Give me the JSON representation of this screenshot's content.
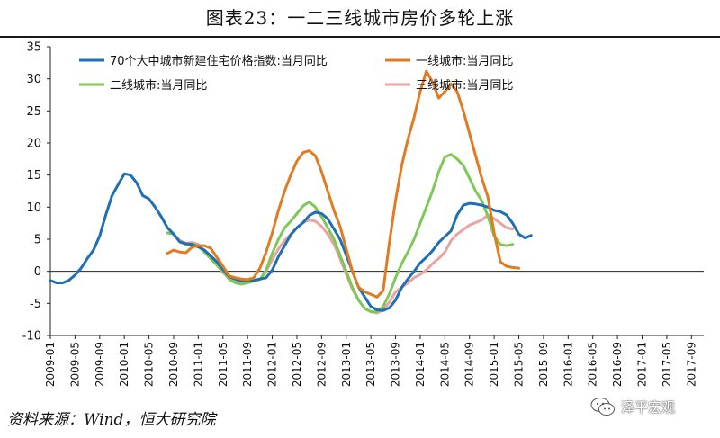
{
  "title": "图表23：一二三线城市房价多轮上涨",
  "source": "资料来源：Wind，恒大研究院",
  "watermark": "泽平宏观",
  "chart_data": {
    "type": "line",
    "ylim": [
      -10,
      35
    ],
    "yticks": [
      -10,
      -5,
      0,
      5,
      10,
      15,
      20,
      25,
      30,
      35
    ],
    "xlim": [
      0,
      106
    ],
    "xticks": [
      {
        "label": "2009-01",
        "pos": 0
      },
      {
        "label": "2009-05",
        "pos": 4
      },
      {
        "label": "2009-09",
        "pos": 8
      },
      {
        "label": "2010-01",
        "pos": 12
      },
      {
        "label": "2010-05",
        "pos": 16
      },
      {
        "label": "2010-09",
        "pos": 20
      },
      {
        "label": "2011-01",
        "pos": 24
      },
      {
        "label": "2011-05",
        "pos": 28
      },
      {
        "label": "2011-09",
        "pos": 32
      },
      {
        "label": "2012-01",
        "pos": 36
      },
      {
        "label": "2012-05",
        "pos": 40
      },
      {
        "label": "2012-09",
        "pos": 44
      },
      {
        "label": "2013-01",
        "pos": 48
      },
      {
        "label": "2013-05",
        "pos": 52
      },
      {
        "label": "2013-09",
        "pos": 56
      },
      {
        "label": "2014-01",
        "pos": 60
      },
      {
        "label": "2014-05",
        "pos": 64
      },
      {
        "label": "2014-09",
        "pos": 68
      },
      {
        "label": "2015-01",
        "pos": 72
      },
      {
        "label": "2015-05",
        "pos": 76
      },
      {
        "label": "2015-09",
        "pos": 80
      },
      {
        "label": "2016-01",
        "pos": 84
      },
      {
        "label": "2016-05",
        "pos": 88
      },
      {
        "label": "2016-09",
        "pos": 92
      },
      {
        "label": "2017-01",
        "pos": 96
      },
      {
        "label": "2017-05",
        "pos": 100
      },
      {
        "label": "2017-09",
        "pos": 104
      }
    ],
    "legend_position": "top",
    "grid": false,
    "series": [
      {
        "name": "70个大中城市新建住宅价格指数:当月同比",
        "color": "#1f6fb5",
        "points": [
          [
            0,
            -1.4
          ],
          [
            1,
            -1.8
          ],
          [
            2,
            -1.8
          ],
          [
            3,
            -1.4
          ],
          [
            4,
            -0.6
          ],
          [
            5,
            0.5
          ],
          [
            6,
            2.0
          ],
          [
            7,
            3.3
          ],
          [
            8,
            5.5
          ],
          [
            9,
            8.8
          ],
          [
            10,
            11.8
          ],
          [
            11,
            13.5
          ],
          [
            12,
            15.2
          ],
          [
            13,
            15.0
          ],
          [
            14,
            13.8
          ],
          [
            15,
            11.8
          ],
          [
            16,
            11.3
          ],
          [
            17,
            10.0
          ],
          [
            18,
            8.5
          ],
          [
            19,
            6.8
          ],
          [
            20,
            5.8
          ],
          [
            21,
            4.6
          ],
          [
            22,
            4.3
          ],
          [
            23,
            4.2
          ],
          [
            24,
            3.8
          ],
          [
            25,
            3.3
          ],
          [
            26,
            2.4
          ],
          [
            27,
            1.5
          ],
          [
            28,
            0.3
          ],
          [
            29,
            -0.8
          ],
          [
            30,
            -1.2
          ],
          [
            31,
            -1.5
          ],
          [
            32,
            -1.4
          ],
          [
            33,
            -1.4
          ],
          [
            34,
            -1.2
          ],
          [
            35,
            -1.0
          ],
          [
            36,
            0.2
          ],
          [
            37,
            2.3
          ],
          [
            38,
            4.0
          ],
          [
            39,
            5.7
          ],
          [
            40,
            6.8
          ],
          [
            41,
            7.6
          ],
          [
            42,
            8.7
          ],
          [
            43,
            9.2
          ],
          [
            44,
            9.0
          ],
          [
            45,
            8.2
          ],
          [
            46,
            6.6
          ],
          [
            47,
            5.0
          ],
          [
            48,
            2.5
          ],
          [
            49,
            0.0
          ],
          [
            50,
            -2.5
          ],
          [
            51,
            -4.0
          ],
          [
            52,
            -5.5
          ],
          [
            53,
            -6.0
          ],
          [
            54,
            -6.1
          ],
          [
            55,
            -5.7
          ],
          [
            56,
            -4.5
          ],
          [
            57,
            -2.5
          ],
          [
            58,
            -1.2
          ],
          [
            59,
            0.0
          ],
          [
            60,
            1.3
          ],
          [
            61,
            2.2
          ],
          [
            62,
            3.2
          ],
          [
            63,
            4.5
          ],
          [
            64,
            5.4
          ],
          [
            65,
            6.3
          ],
          [
            66,
            8.8
          ],
          [
            67,
            10.3
          ],
          [
            68,
            10.6
          ],
          [
            69,
            10.5
          ],
          [
            70,
            10.3
          ],
          [
            71,
            10.0
          ],
          [
            72,
            9.5
          ],
          [
            73,
            9.3
          ],
          [
            74,
            8.8
          ],
          [
            75,
            7.5
          ],
          [
            76,
            5.8
          ],
          [
            77,
            5.2
          ],
          [
            78,
            5.6
          ]
        ]
      },
      {
        "name": "一线城市:当月同比",
        "color": "#e07b22",
        "points": [
          [
            19,
            2.8
          ],
          [
            20,
            3.3
          ],
          [
            21,
            3.0
          ],
          [
            22,
            2.9
          ],
          [
            23,
            3.8
          ],
          [
            24,
            4.0
          ],
          [
            25,
            4.0
          ],
          [
            26,
            3.6
          ],
          [
            27,
            2.2
          ],
          [
            28,
            0.8
          ],
          [
            29,
            -0.7
          ],
          [
            30,
            -1.0
          ],
          [
            31,
            -1.2
          ],
          [
            32,
            -1.3
          ],
          [
            33,
            -1.0
          ],
          [
            34,
            0.5
          ],
          [
            35,
            3.0
          ],
          [
            36,
            6.0
          ],
          [
            37,
            9.5
          ],
          [
            38,
            12.5
          ],
          [
            39,
            15.0
          ],
          [
            40,
            17.2
          ],
          [
            41,
            18.5
          ],
          [
            42,
            18.8
          ],
          [
            43,
            18.0
          ],
          [
            44,
            15.5
          ],
          [
            45,
            12.5
          ],
          [
            46,
            9.5
          ],
          [
            47,
            7.0
          ],
          [
            48,
            3.5
          ],
          [
            49,
            0.0
          ],
          [
            50,
            -2.5
          ],
          [
            51,
            -3.2
          ],
          [
            52,
            -3.6
          ],
          [
            53,
            -4.0
          ],
          [
            54,
            -3.0
          ],
          [
            55,
            4.5
          ],
          [
            56,
            11.0
          ],
          [
            57,
            16.5
          ],
          [
            58,
            20.5
          ],
          [
            59,
            24.0
          ],
          [
            60,
            28.0
          ],
          [
            61,
            31.2
          ],
          [
            62,
            29.5
          ],
          [
            63,
            27.0
          ],
          [
            64,
            28.0
          ],
          [
            65,
            29.2
          ],
          [
            66,
            28.0
          ],
          [
            67,
            25.0
          ],
          [
            68,
            21.5
          ],
          [
            69,
            18.0
          ],
          [
            70,
            14.5
          ],
          [
            71,
            11.5
          ],
          [
            72,
            6.0
          ],
          [
            73,
            1.5
          ],
          [
            74,
            0.8
          ],
          [
            75,
            0.6
          ],
          [
            76,
            0.5
          ]
        ]
      },
      {
        "name": "二线城市:当月同比",
        "color": "#7dc859",
        "points": [
          [
            19,
            6.0
          ],
          [
            20,
            5.8
          ],
          [
            21,
            4.6
          ],
          [
            22,
            4.2
          ],
          [
            23,
            4.3
          ],
          [
            24,
            4.0
          ],
          [
            25,
            3.0
          ],
          [
            26,
            2.0
          ],
          [
            27,
            1.0
          ],
          [
            28,
            0.0
          ],
          [
            29,
            -1.2
          ],
          [
            30,
            -1.8
          ],
          [
            31,
            -2.0
          ],
          [
            32,
            -1.8
          ],
          [
            33,
            -1.5
          ],
          [
            34,
            -1.3
          ],
          [
            35,
            0.2
          ],
          [
            36,
            2.8
          ],
          [
            37,
            5.0
          ],
          [
            38,
            6.8
          ],
          [
            39,
            7.8
          ],
          [
            40,
            9.0
          ],
          [
            41,
            10.2
          ],
          [
            42,
            10.8
          ],
          [
            43,
            10.0
          ],
          [
            44,
            8.5
          ],
          [
            45,
            6.8
          ],
          [
            46,
            5.0
          ],
          [
            47,
            2.5
          ],
          [
            48,
            0.0
          ],
          [
            49,
            -2.5
          ],
          [
            50,
            -4.5
          ],
          [
            51,
            -5.8
          ],
          [
            52,
            -6.3
          ],
          [
            53,
            -6.3
          ],
          [
            54,
            -5.5
          ],
          [
            55,
            -3.5
          ],
          [
            56,
            -1.0
          ],
          [
            57,
            1.2
          ],
          [
            58,
            3.0
          ],
          [
            59,
            5.0
          ],
          [
            60,
            7.5
          ],
          [
            61,
            10.0
          ],
          [
            62,
            12.5
          ],
          [
            63,
            15.5
          ],
          [
            64,
            17.8
          ],
          [
            65,
            18.2
          ],
          [
            66,
            17.5
          ],
          [
            67,
            16.5
          ],
          [
            68,
            14.5
          ],
          [
            69,
            12.5
          ],
          [
            70,
            11.0
          ],
          [
            71,
            8.5
          ],
          [
            72,
            5.5
          ],
          [
            73,
            4.2
          ],
          [
            74,
            4.0
          ],
          [
            75,
            4.2
          ]
        ]
      },
      {
        "name": "三线城市:当月同比",
        "color": "#e8a4a0",
        "points": [
          [
            19,
            6.8
          ],
          [
            20,
            5.8
          ],
          [
            21,
            4.8
          ],
          [
            22,
            4.4
          ],
          [
            23,
            4.5
          ],
          [
            24,
            4.2
          ],
          [
            25,
            3.2
          ],
          [
            26,
            2.0
          ],
          [
            27,
            1.0
          ],
          [
            28,
            -0.2
          ],
          [
            29,
            -1.0
          ],
          [
            30,
            -1.5
          ],
          [
            31,
            -1.8
          ],
          [
            32,
            -1.7
          ],
          [
            33,
            -1.5
          ],
          [
            34,
            -1.2
          ],
          [
            35,
            0.0
          ],
          [
            36,
            1.8
          ],
          [
            37,
            3.5
          ],
          [
            38,
            4.8
          ],
          [
            39,
            5.8
          ],
          [
            40,
            6.8
          ],
          [
            41,
            7.6
          ],
          [
            42,
            8.0
          ],
          [
            43,
            7.8
          ],
          [
            44,
            7.0
          ],
          [
            45,
            5.8
          ],
          [
            46,
            4.2
          ],
          [
            47,
            2.0
          ],
          [
            48,
            -0.5
          ],
          [
            49,
            -2.8
          ],
          [
            50,
            -4.5
          ],
          [
            51,
            -5.8
          ],
          [
            52,
            -6.3
          ],
          [
            53,
            -6.5
          ],
          [
            54,
            -6.0
          ],
          [
            55,
            -4.8
          ],
          [
            56,
            -3.2
          ],
          [
            57,
            -2.5
          ],
          [
            58,
            -1.8
          ],
          [
            59,
            -1.0
          ],
          [
            60,
            -0.5
          ],
          [
            61,
            0.2
          ],
          [
            62,
            1.2
          ],
          [
            63,
            2.0
          ],
          [
            64,
            3.0
          ],
          [
            65,
            4.8
          ],
          [
            66,
            5.8
          ],
          [
            67,
            6.5
          ],
          [
            68,
            7.2
          ],
          [
            69,
            7.6
          ],
          [
            70,
            8.0
          ],
          [
            71,
            8.8
          ],
          [
            72,
            8.2
          ],
          [
            73,
            7.5
          ],
          [
            74,
            6.8
          ],
          [
            75,
            6.6
          ]
        ]
      }
    ]
  }
}
